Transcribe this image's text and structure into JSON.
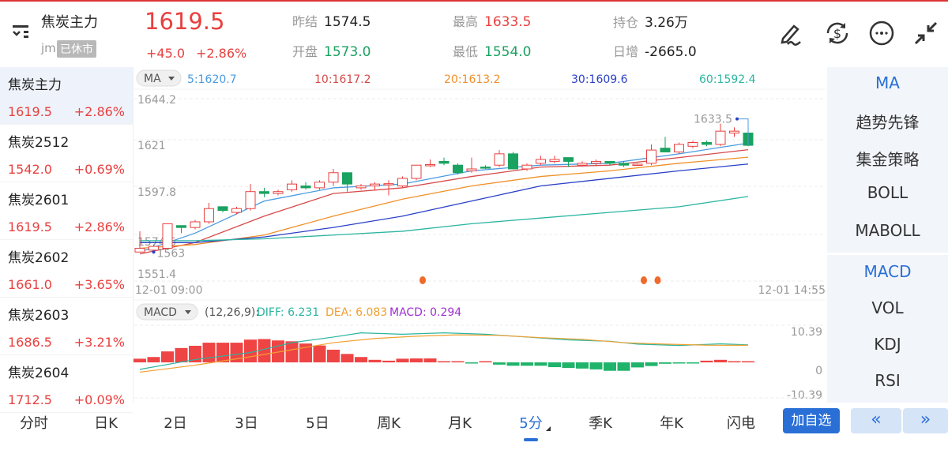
{
  "header": {
    "name": "焦炭主力",
    "code": "jm",
    "status": "已休市",
    "price": "1619.5",
    "change": "+45.0",
    "change_pct": "+2.86%",
    "stats": [
      {
        "label": "昨结",
        "value": "1574.5",
        "color": "#222"
      },
      {
        "label": "最高",
        "value": "1633.5",
        "color": "#e8403f"
      },
      {
        "label": "持仓",
        "value": "3.26万",
        "color": "#222"
      },
      {
        "label": "开盘",
        "value": "1573.0",
        "color": "#1aa260"
      },
      {
        "label": "最低",
        "value": "1554.0",
        "color": "#1aa260"
      },
      {
        "label": "日增",
        "value": "-2665.0",
        "color": "#222"
      }
    ],
    "icons": [
      "sign-icon",
      "currency-exchange-icon",
      "more-icon",
      "collapse-icon"
    ]
  },
  "watchlist": [
    {
      "name": "焦炭主力",
      "price": "1619.5",
      "pct": "+2.86%"
    },
    {
      "name": "焦炭2512",
      "price": "1542.0",
      "pct": "+0.69%"
    },
    {
      "name": "焦炭2601",
      "price": "1619.5",
      "pct": "+2.86%"
    },
    {
      "name": "焦炭2602",
      "price": "1661.0",
      "pct": "+3.65%"
    },
    {
      "name": "焦炭2603",
      "price": "1686.5",
      "pct": "+3.21%"
    },
    {
      "name": "焦炭2604",
      "price": "1712.5",
      "pct": "+0.09%"
    }
  ],
  "indicators_main": [
    "MA",
    "趋势先锋",
    "集金策略",
    "BOLL",
    "MABOLL"
  ],
  "indicators_sub": [
    "MACD",
    "VOL",
    "KDJ",
    "RSI"
  ],
  "bottom": {
    "tabs": [
      "分时",
      "日K",
      "2日",
      "3日",
      "5日",
      "周K",
      "月K",
      "5分",
      "季K",
      "年K",
      "闪电"
    ],
    "active": "5分",
    "add_label": "加自选",
    "prev": "«",
    "next": "»"
  },
  "colors": {
    "up": "#e8403f",
    "down": "#1aa260",
    "accent": "#2a6fd6"
  },
  "chart_data": [
    {
      "type": "candlestick",
      "selector": "MA",
      "legend": [
        {
          "label": "5:1620.7",
          "color": "#4a9be0"
        },
        {
          "label": "10:1617.2",
          "color": "#d64a4a"
        },
        {
          "label": "20:1613.2",
          "color": "#f0902a"
        },
        {
          "label": "30:1609.6",
          "color": "#2a3fc8"
        },
        {
          "label": "60:1592.4",
          "color": "#2ab5a0"
        }
      ],
      "yticks": [
        "1644.2",
        "1621",
        "1597.8",
        "1574.6",
        "1551.4"
      ],
      "ylim": [
        1551.4,
        1644.2
      ],
      "x_start": "12-01 09:00",
      "x_end": "12-01 14:55",
      "high_label": "1633.5",
      "low_label": "1563",
      "ohlc": [
        [
          1563,
          1565,
          1574,
          1563
        ],
        [
          1564,
          1566,
          1567,
          1563
        ],
        [
          1565,
          1578,
          1578,
          1564
        ],
        [
          1577,
          1576,
          1577,
          1573
        ],
        [
          1576,
          1579,
          1580,
          1575
        ],
        [
          1579,
          1586,
          1589,
          1578
        ],
        [
          1587,
          1585,
          1587,
          1584
        ],
        [
          1584,
          1586,
          1587,
          1583
        ],
        [
          1586,
          1595,
          1599,
          1585
        ],
        [
          1595,
          1594,
          1597,
          1592
        ],
        [
          1594,
          1595,
          1596,
          1593
        ],
        [
          1596,
          1599,
          1601,
          1595
        ],
        [
          1598,
          1597,
          1600,
          1596
        ],
        [
          1597,
          1600,
          1601,
          1596
        ],
        [
          1600,
          1605,
          1607,
          1598
        ],
        [
          1605,
          1599,
          1605,
          1595
        ],
        [
          1597,
          1598,
          1599,
          1596
        ],
        [
          1598,
          1599,
          1600,
          1596
        ],
        [
          1599,
          1599.2,
          1601,
          1593
        ],
        [
          1598,
          1602,
          1603,
          1597
        ],
        [
          1602,
          1609,
          1609,
          1601
        ],
        [
          1609,
          1609.3,
          1612,
          1608
        ],
        [
          1611,
          1610,
          1613,
          1609
        ],
        [
          1609,
          1605,
          1610,
          1604
        ],
        [
          1606,
          1607,
          1613,
          1605
        ],
        [
          1608,
          1607.8,
          1609,
          1607
        ],
        [
          1609,
          1615,
          1617,
          1608
        ],
        [
          1615,
          1607,
          1616,
          1607
        ],
        [
          1607,
          1609,
          1610,
          1606
        ],
        [
          1610,
          1612,
          1614,
          1609
        ],
        [
          1611,
          1612,
          1614,
          1610
        ],
        [
          1613,
          1611,
          1613,
          1608
        ],
        [
          1609,
          1610,
          1611,
          1609
        ],
        [
          1610,
          1611,
          1612,
          1609
        ],
        [
          1611,
          1610,
          1611,
          1609
        ],
        [
          1610,
          1609,
          1611,
          1608
        ],
        [
          1609,
          1609.5,
          1610,
          1609
        ],
        [
          1610,
          1617,
          1620,
          1609
        ],
        [
          1618,
          1616,
          1624,
          1616
        ],
        [
          1616,
          1620,
          1621,
          1615
        ],
        [
          1619,
          1621,
          1622,
          1618
        ],
        [
          1621,
          1620,
          1622,
          1619
        ],
        [
          1620,
          1627,
          1631,
          1619
        ],
        [
          1626,
          1627,
          1629,
          1624
        ],
        [
          1626,
          1619.5,
          1633.5,
          1619
        ]
      ],
      "ma_sample_index": [
        1,
        5,
        10,
        15,
        20,
        25,
        30,
        35,
        40,
        45
      ],
      "ma": [
        [
          1563,
          1573,
          1590,
          1597,
          1599,
          1606,
          1609,
          1610,
          1615,
          1620.7
        ],
        [
          1562,
          1568,
          1582,
          1594,
          1597,
          1603,
          1608,
          1609,
          1613,
          1617.2
        ],
        [
          1565,
          1567,
          1572,
          1582,
          1591,
          1598,
          1603,
          1606,
          1610,
          1613.2
        ],
        [
          1568,
          1568,
          1571,
          1576,
          1582,
          1590,
          1598,
          1602,
          1606,
          1609.6
        ],
        [
          1569,
          1569,
          1570,
          1572,
          1574,
          1578,
          1581,
          1584,
          1587,
          1592.4
        ]
      ],
      "markers_at_index": [
        21,
        37,
        38
      ]
    },
    {
      "type": "macd",
      "selector": "MACD",
      "params": "(12,26,9):",
      "diff_label": "DIFF: 6.231",
      "dea_label": "DEA: 6.083",
      "macd_label": "MACD: 0.294",
      "yticks": [
        "10.39",
        "0",
        "-10.39"
      ],
      "ylim": [
        -10.39,
        10.39
      ],
      "hist": [
        1.3,
        1.9,
        3.9,
        5.1,
        5.9,
        7.0,
        7.0,
        7.0,
        8.1,
        8.3,
        7.8,
        7.5,
        6.7,
        6.0,
        4.5,
        3.0,
        1.9,
        0.9,
        0.6,
        1.3,
        1.4,
        1.4,
        0.3,
        0.05,
        -0.2,
        0.2,
        -0.8,
        -1.2,
        -1.2,
        -1.2,
        -1.7,
        -2.0,
        -2.2,
        -2.5,
        -3.0,
        -3.0,
        -1.8,
        -1.3,
        -0.5,
        -0.2,
        -0.2,
        0.6,
        0.9,
        0.4,
        0.294
      ],
      "diff_idx": [
        1,
        5,
        9,
        12,
        15,
        17,
        20,
        23,
        26,
        29,
        32,
        35,
        37,
        40,
        43,
        45
      ],
      "diff": [
        -2.5,
        1,
        3.5,
        7,
        9,
        10.5,
        10,
        10.5,
        10,
        9,
        8,
        7.5,
        6.5,
        6,
        6.6,
        6.231
      ],
      "dea_idx": [
        1,
        5,
        9,
        12,
        15,
        18,
        21,
        24,
        27,
        30,
        33,
        36,
        39,
        42,
        45
      ],
      "dea": [
        -3.5,
        -1,
        2,
        4.5,
        7,
        8.5,
        9.3,
        9.8,
        9.6,
        8.8,
        8.2,
        7,
        6.5,
        6.1,
        6.083
      ]
    }
  ]
}
